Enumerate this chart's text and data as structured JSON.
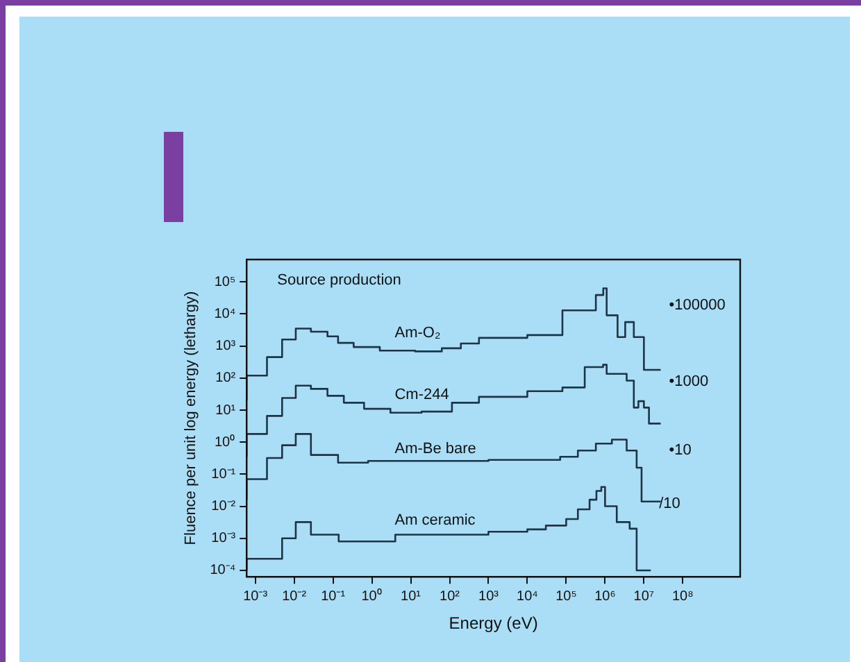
{
  "chart_data": {
    "type": "step",
    "xlabel": "Energy (eV)",
    "ylabel": "Fluence per unit log energy (lethargy)",
    "log": "xy",
    "marker": "none",
    "annotations": [
      "Source production",
      "•100000",
      "•1000",
      "•10",
      "/10"
    ],
    "xlim": [
      0.0006,
      3000000000
    ],
    "ylim": [
      6.3e-05,
      500000
    ],
    "xticks": [
      {
        "value": 0.001,
        "label": "10⁻³"
      },
      {
        "value": 0.01,
        "label": "10⁻²"
      },
      {
        "value": 0.1,
        "label": "10⁻¹"
      },
      {
        "value": 1,
        "label": "10⁰"
      },
      {
        "value": 10,
        "label": "10¹"
      },
      {
        "value": 100,
        "label": "10²"
      },
      {
        "value": 1000,
        "label": "10³"
      },
      {
        "value": 10000,
        "label": "10⁴"
      },
      {
        "value": 100000,
        "label": "10⁵"
      },
      {
        "value": 1000000,
        "label": "10⁶"
      },
      {
        "value": 10000000,
        "label": "10⁷"
      },
      {
        "value": 100000000,
        "label": "10⁸"
      }
    ],
    "yticks": [
      {
        "value": 0.0001,
        "label": "10⁻⁴"
      },
      {
        "value": 0.001,
        "label": "10⁻³"
      },
      {
        "value": 0.01,
        "label": "10⁻²"
      },
      {
        "value": 0.1,
        "label": "10⁻¹"
      },
      {
        "value": 1,
        "label": "10⁰"
      },
      {
        "value": 10,
        "label": "10¹"
      },
      {
        "value": 100,
        "label": "10²"
      },
      {
        "value": 1000,
        "label": "10³"
      },
      {
        "value": 10000,
        "label": "10⁴"
      },
      {
        "value": 100000,
        "label": "10⁵"
      }
    ],
    "series": [
      {
        "name": "Am-O₂",
        "color": "#1f3346",
        "x": [
          0.0006,
          0.002,
          0.0049,
          0.011,
          0.027,
          0.072,
          0.135,
          0.34,
          1.6,
          13,
          63,
          195,
          570,
          10000,
          80000,
          580000,
          900000,
          1100000,
          2100000,
          3300000,
          5500000,
          10000000,
          18000000,
          27000000
        ],
        "values": [
          20,
          120,
          450,
          1600,
          3500,
          2800,
          2000,
          1250,
          930,
          720,
          680,
          850,
          1200,
          1800,
          2200,
          13000,
          39000,
          63000,
          9100,
          1900,
          5600,
          1900,
          180,
          180
        ]
      },
      {
        "name": "Cm-244",
        "color": "#1f3346",
        "x": [
          0.0006,
          0.002,
          0.0049,
          0.011,
          0.027,
          0.072,
          0.19,
          0.63,
          3,
          19,
          115,
          570,
          10000,
          80000,
          300000,
          890000,
          1100000,
          3600000,
          5500000,
          7200000,
          10000000,
          13500000,
          18000000,
          27000000
        ],
        "values": [
          0.35,
          1.8,
          6.6,
          24,
          58,
          46,
          28,
          17,
          11,
          8.3,
          9,
          17,
          26,
          39,
          51,
          220,
          260,
          135,
          83,
          12,
          19,
          12,
          3.8,
          3.8
        ]
      },
      {
        "name": "Am-Be bare",
        "color": "#1f3346",
        "x": [
          0.0006,
          0.002,
          0.0049,
          0.011,
          0.027,
          0.135,
          0.8,
          1000,
          70000,
          200000,
          580000,
          1500000,
          3600000,
          6500000,
          8700000,
          15000000,
          27000000
        ],
        "values": [
          0.016,
          0.07,
          0.32,
          0.8,
          1.8,
          0.4,
          0.23,
          0.26,
          0.28,
          0.35,
          0.55,
          0.9,
          1.2,
          0.55,
          0.16,
          0.014,
          0.014
        ]
      },
      {
        "name": "Am ceramic",
        "color": "#1f3346",
        "x": [
          0.0006,
          0.0049,
          0.011,
          0.027,
          0.14,
          4,
          1000,
          10000,
          30000,
          100000,
          200000,
          400000,
          600000,
          800000,
          1000000,
          2000000,
          4300000,
          6500000,
          15000000
        ],
        "values": [
          0.0001,
          0.00023,
          0.001,
          0.0032,
          0.0013,
          0.0008,
          0.0013,
          0.0016,
          0.0019,
          0.0025,
          0.004,
          0.008,
          0.016,
          0.03,
          0.04,
          0.01,
          0.0032,
          0.002,
          0.0001
        ]
      }
    ]
  }
}
